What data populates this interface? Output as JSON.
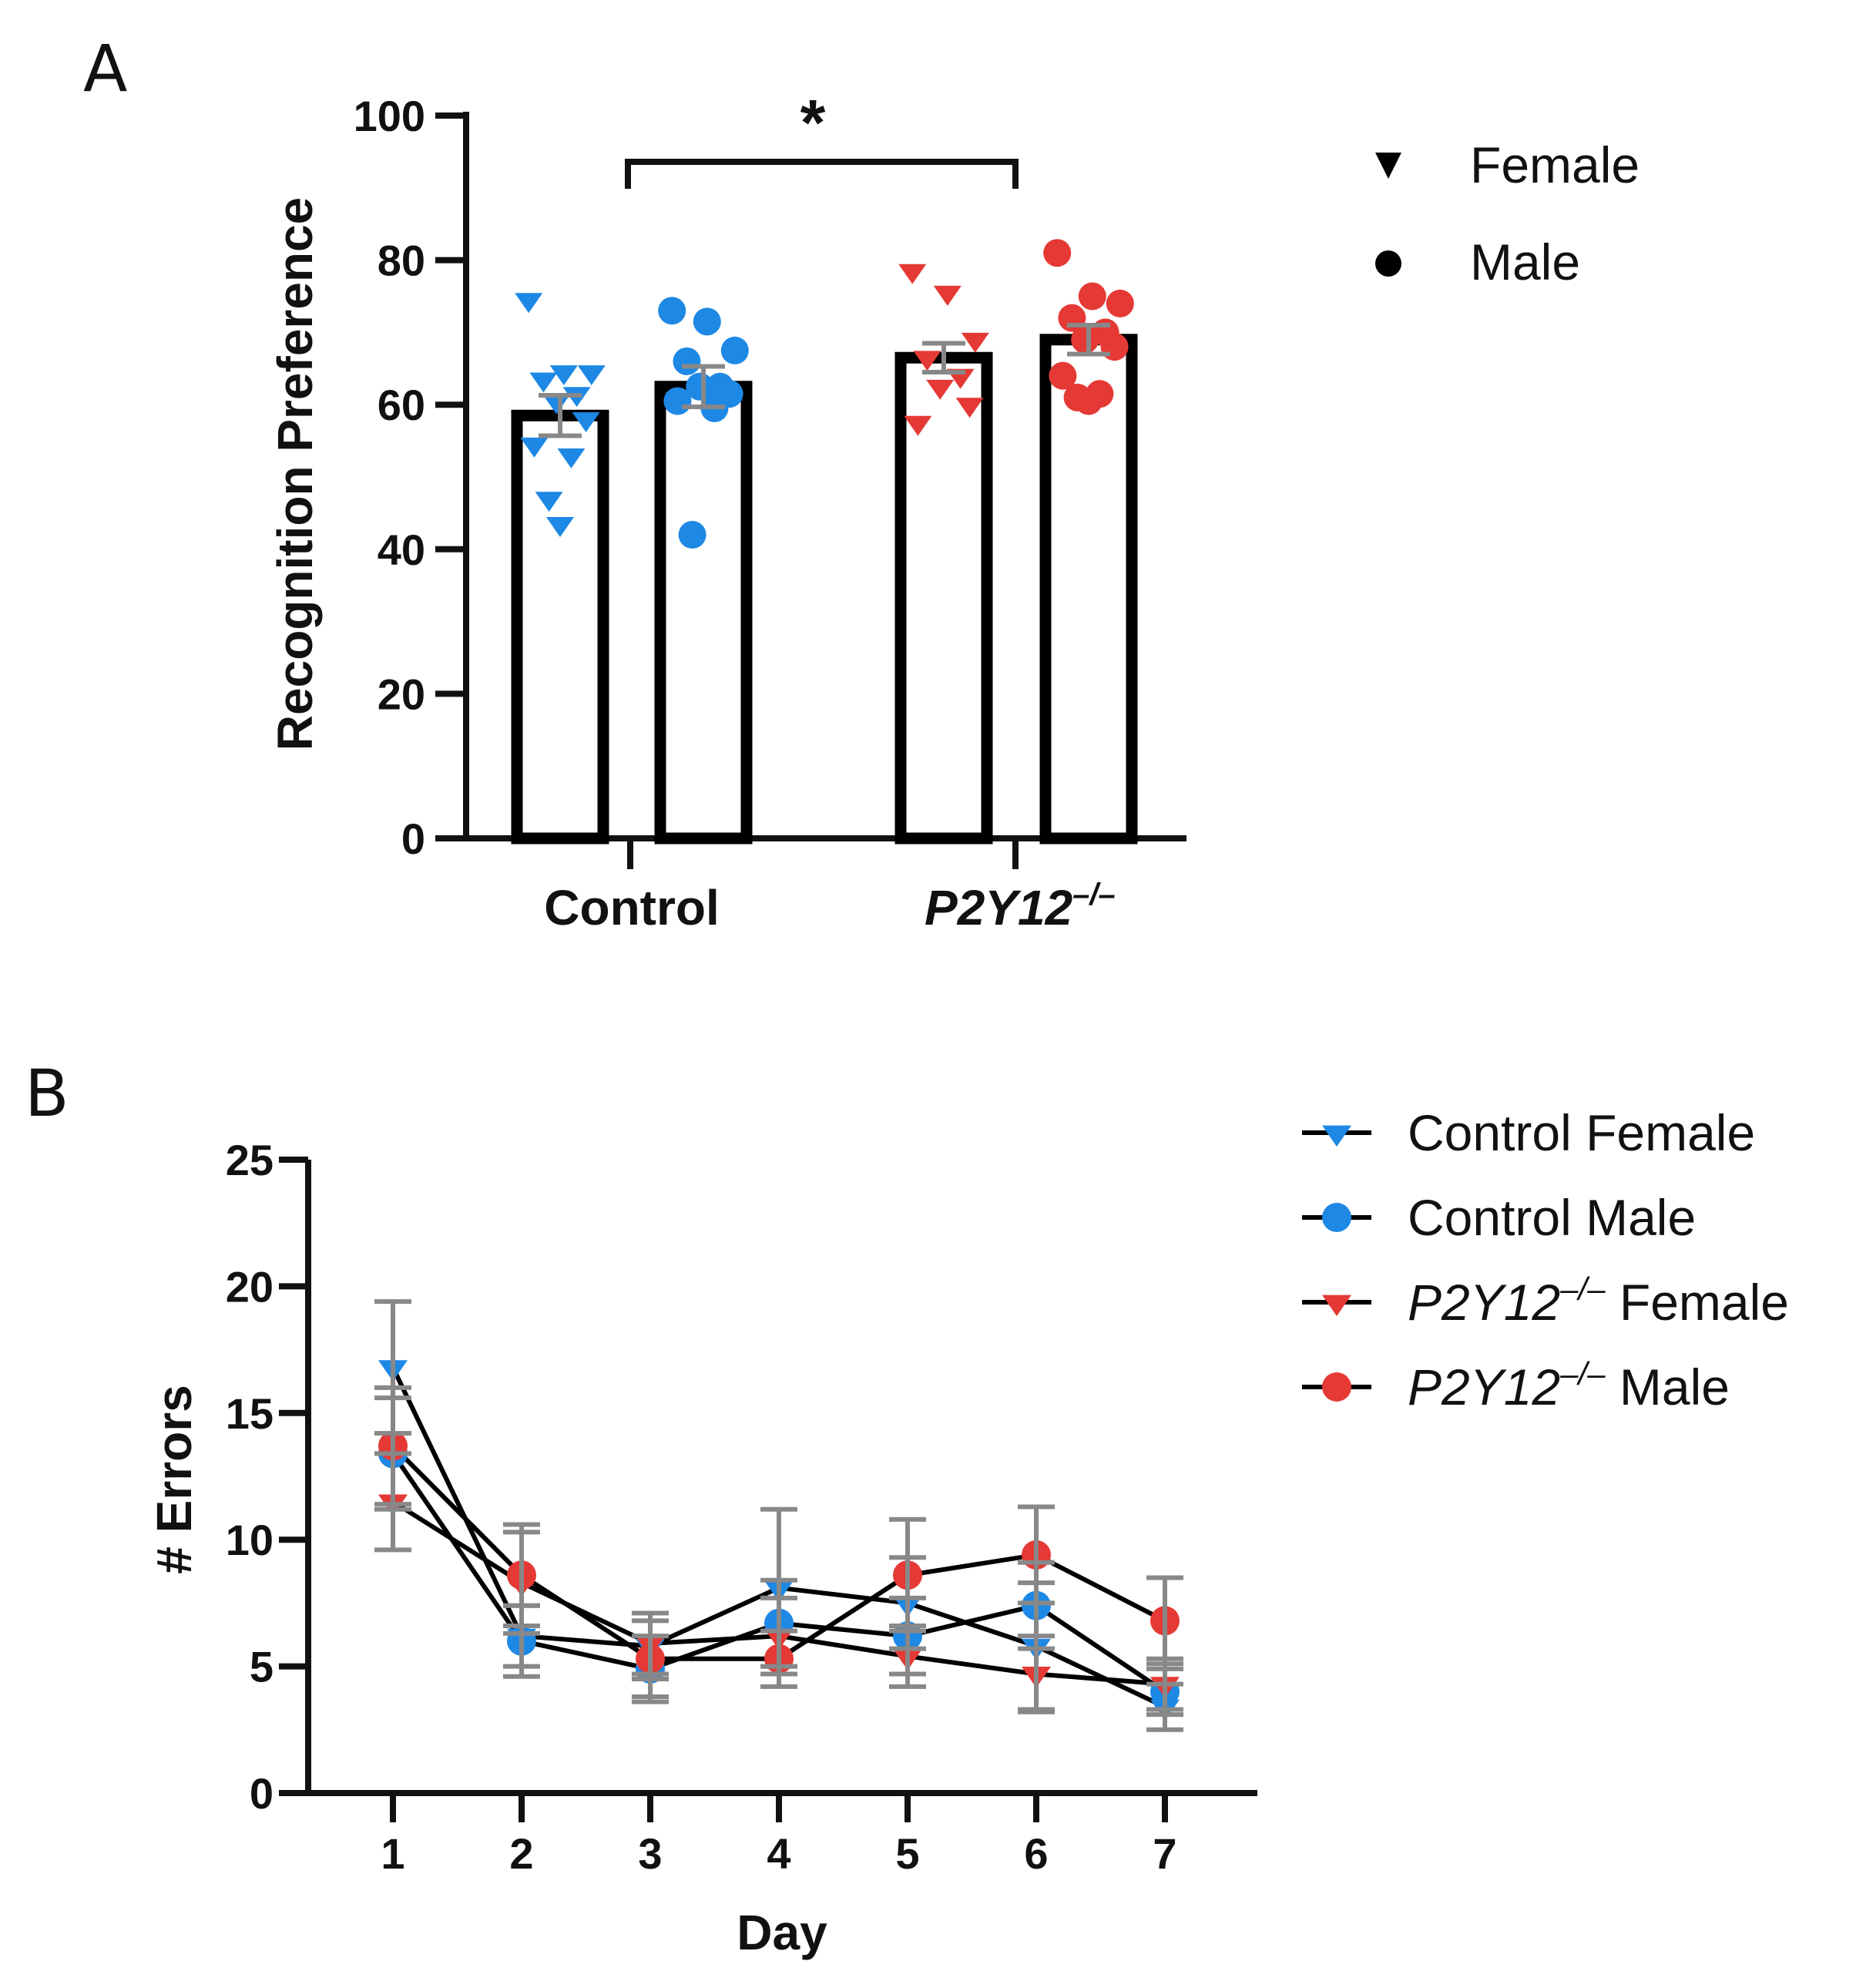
{
  "colors": {
    "control": "#1E88E5",
    "p2y12": "#E53935",
    "error_bar": "#888888",
    "axis": "#111111"
  },
  "panel_a": {
    "letter": "A",
    "significance": "*",
    "legend": [
      {
        "label": "Female",
        "marker": "triangle-down"
      },
      {
        "label": "Male",
        "marker": "circle"
      }
    ]
  },
  "panel_b": {
    "letter": "B",
    "legend": [
      {
        "label_main": "Control Female",
        "label_italic": "",
        "label_sup": "",
        "label_rest": "",
        "marker": "triangle-down",
        "color": "#1E88E5"
      },
      {
        "label_main": "Control Male",
        "label_italic": "",
        "label_sup": "",
        "label_rest": "",
        "marker": "circle",
        "color": "#1E88E5"
      },
      {
        "label_main": "",
        "label_italic": "P2Y12",
        "label_sup": "–/–",
        "label_rest": " Female",
        "marker": "triangle-down",
        "color": "#E53935"
      },
      {
        "label_main": "",
        "label_italic": "P2Y12",
        "label_sup": "–/–",
        "label_rest": " Male",
        "marker": "circle",
        "color": "#E53935"
      }
    ]
  },
  "chart_data": [
    {
      "type": "bar",
      "panel": "A",
      "ylabel": "Recognition Preference",
      "xlabel": "",
      "ylim": [
        0,
        100
      ],
      "yticks": [
        0,
        20,
        40,
        60,
        80,
        100
      ],
      "groups": [
        {
          "label": "Control",
          "label_italic": false,
          "label_sup": ""
        },
        {
          "label": "P2Y12",
          "label_italic": true,
          "label_sup": "–/–"
        }
      ],
      "bars": [
        {
          "group": "Control",
          "sex": "Female",
          "mean": 58.5,
          "sem": 2.8,
          "points": [
            74.5,
            64.5,
            64.5,
            63.5,
            61.5,
            60.5,
            58,
            54.5,
            53,
            47,
            43.5
          ]
        },
        {
          "group": "Control",
          "sex": "Male",
          "mean": 62.5,
          "sem": 2.8,
          "points": [
            73,
            71.5,
            67.5,
            66,
            62.5,
            62.5,
            61.5,
            60.5,
            59.5,
            42
          ]
        },
        {
          "group": "P2Y12",
          "sex": "Female",
          "mean": 66.5,
          "sem": 2.0,
          "points": [
            78.5,
            75.5,
            69,
            66.5,
            64,
            62.5,
            60,
            57.5
          ]
        },
        {
          "group": "P2Y12",
          "sex": "Male",
          "mean": 69,
          "sem": 2.0,
          "points": [
            81,
            75,
            74,
            72,
            70,
            69,
            68,
            64,
            61.5,
            61,
            60.5
          ]
        }
      ],
      "significance": {
        "from": "Control",
        "to": "P2Y12",
        "label": "*"
      }
    },
    {
      "type": "line",
      "panel": "B",
      "xlabel": "Day",
      "ylabel": "# Errors",
      "x": [
        1,
        2,
        3,
        4,
        5,
        6,
        7
      ],
      "ylim": [
        0,
        25
      ],
      "yticks": [
        0,
        5,
        10,
        15,
        20,
        25
      ],
      "series": [
        {
          "name": "Control Female",
          "marker": "triangle-down",
          "color": "#1E88E5",
          "values": [
            16.8,
            6.2,
            5.8,
            8.1,
            7.5,
            5.8,
            3.4
          ],
          "errors": [
            2.6,
            1.2,
            1.3,
            3.1,
            1.8,
            2.5,
            0.9
          ]
        },
        {
          "name": "Control Male",
          "marker": "circle",
          "color": "#1E88E5",
          "values": [
            13.4,
            6.0,
            4.9,
            6.7,
            6.2,
            7.4,
            4.0
          ],
          "errors": [
            2.2,
            1.4,
            1.3,
            1.7,
            1.5,
            1.7,
            0.9
          ]
        },
        {
          "name": "P2Y12–/– Female",
          "marker": "triangle-down",
          "color": "#E53935",
          "values": [
            11.5,
            8.3,
            5.9,
            6.2,
            5.4,
            4.7,
            4.3
          ],
          "errors": [
            1.9,
            2.0,
            1.2,
            1.5,
            1.2,
            1.5,
            1.0
          ]
        },
        {
          "name": "P2Y12–/– Male",
          "marker": "circle",
          "color": "#E53935",
          "values": [
            13.7,
            8.6,
            5.3,
            5.3,
            8.6,
            9.4,
            6.8
          ],
          "errors": [
            2.3,
            2.0,
            1.5,
            1.1,
            2.2,
            1.9,
            1.7
          ]
        }
      ]
    }
  ]
}
